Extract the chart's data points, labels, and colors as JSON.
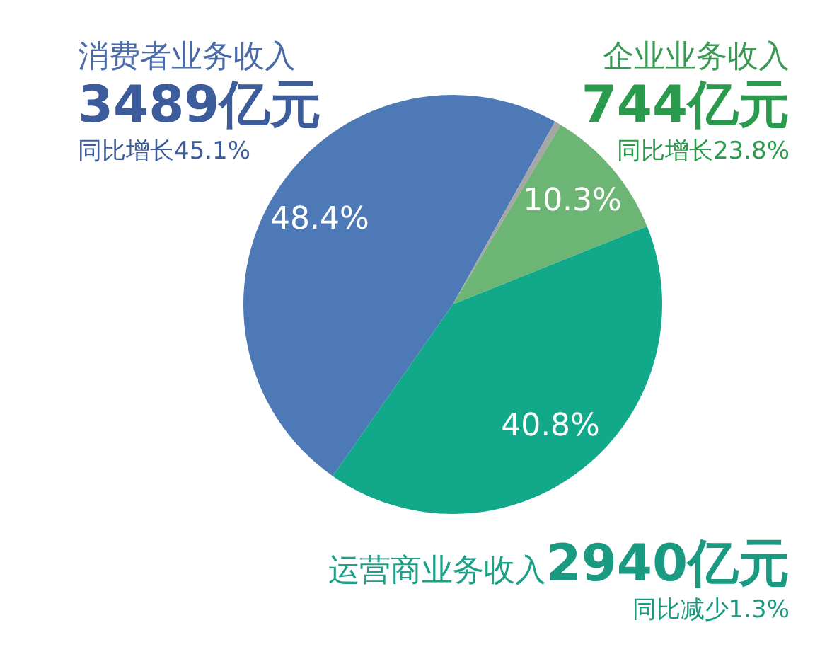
{
  "chart_data": {
    "type": "pie",
    "categories": [
      "消费者业务收入",
      null,
      "企业业务收入",
      "运营商业务收入"
    ],
    "values": [
      48.4,
      0.5,
      10.3,
      40.8
    ],
    "colors": [
      "#4d79b7",
      "#a6a6a6",
      "#6cb574",
      "#12a88a"
    ],
    "value_labels": [
      "48.4%",
      null,
      "10.3%",
      "40.8%"
    ],
    "annotations": [
      "3489亿元",
      "同比增长45.1%",
      "744亿元",
      "同比增长23.8%",
      "2940亿元",
      "同比减少1.3%"
    ],
    "legend": false
  }
}
